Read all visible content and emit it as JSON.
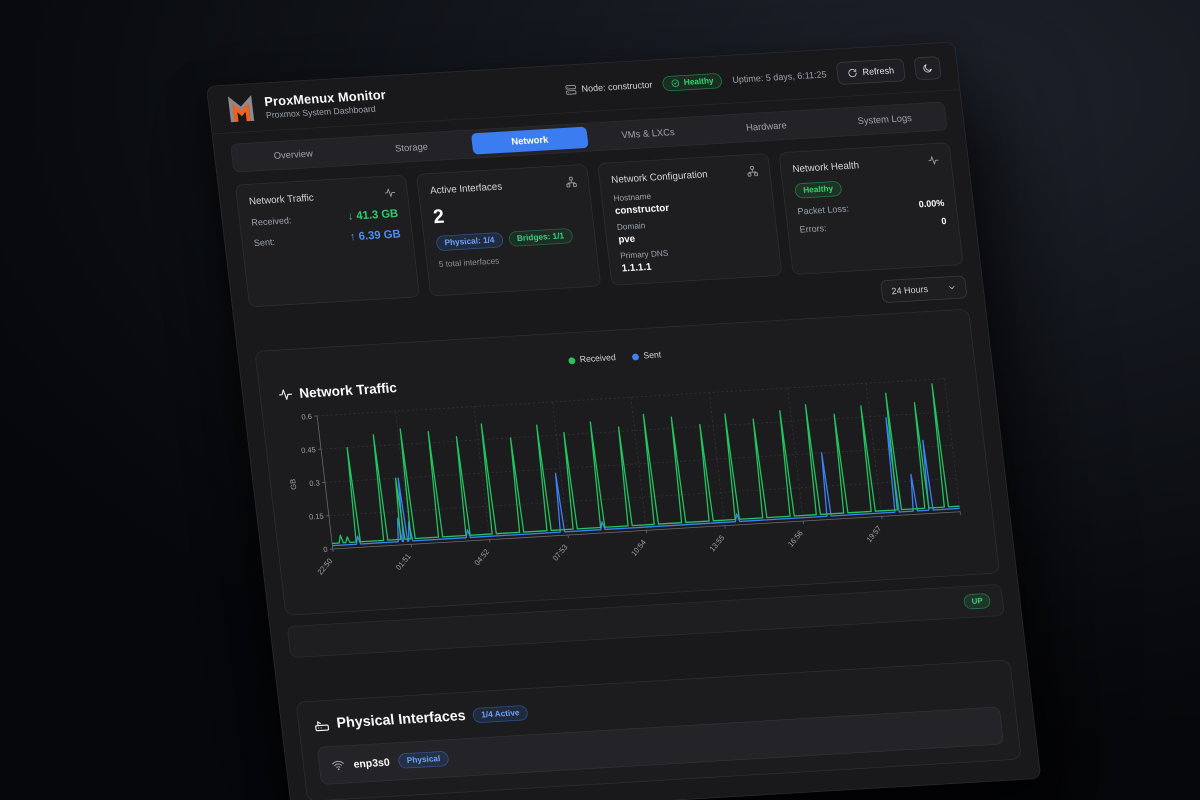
{
  "header": {
    "title": "ProxMenux Monitor",
    "subtitle": "Proxmox System Dashboard",
    "node_label": "Node: constructor",
    "health_badge": "Healthy",
    "uptime": "Uptime: 5 days, 6:11:25",
    "refresh_label": "Refresh"
  },
  "tabs": [
    {
      "label": "Overview",
      "active": false
    },
    {
      "label": "Storage",
      "active": false
    },
    {
      "label": "Network",
      "active": true
    },
    {
      "label": "VMs & LXCs",
      "active": false
    },
    {
      "label": "Hardware",
      "active": false
    },
    {
      "label": "System Logs",
      "active": false
    }
  ],
  "cards": {
    "traffic": {
      "title": "Network Traffic",
      "received_label": "Received:",
      "received_arrow": "↓",
      "received_value": "41.3 GB",
      "sent_label": "Sent:",
      "sent_arrow": "↑",
      "sent_value": "6.39 GB"
    },
    "interfaces": {
      "title": "Active Interfaces",
      "count": "2",
      "physical_badge": "Physical: 1/4",
      "bridges_badge": "Bridges: 1/1",
      "total": "5 total interfaces"
    },
    "config": {
      "title": "Network Configuration",
      "hostname_label": "Hostname",
      "hostname": "constructor",
      "domain_label": "Domain",
      "domain": "pve",
      "dns_label": "Primary DNS",
      "dns": "1.1.1.1"
    },
    "health": {
      "title": "Network Health",
      "status_badge": "Healthy",
      "packet_loss_label": "Packet Loss:",
      "packet_loss": "0.00%",
      "errors_label": "Errors:",
      "errors": "0"
    }
  },
  "range_select": {
    "value": "24 Hours"
  },
  "chart_data": {
    "type": "line",
    "title": "Network Traffic",
    "ylabel": "GB",
    "ylim": [
      0,
      0.6
    ],
    "yticks": [
      0,
      0.15,
      0.3,
      0.45,
      0.6
    ],
    "x_span_hours": 24,
    "x_ticks": [
      {
        "h": 0,
        "label": "22:50"
      },
      {
        "h": 3,
        "label": "01:51"
      },
      {
        "h": 6,
        "label": "04:52"
      },
      {
        "h": 9,
        "label": "07:53"
      },
      {
        "h": 12,
        "label": "10:54"
      },
      {
        "h": 15,
        "label": "13:55"
      },
      {
        "h": 18,
        "label": "16:56"
      },
      {
        "h": 21,
        "label": "19:57"
      },
      {
        "h": 24,
        "label": ""
      }
    ],
    "legend_position": "top-center",
    "grid": true,
    "series": [
      {
        "name": "Received",
        "color": "#22c55e",
        "baseline_gb": 0.025,
        "spikes_hour_gb": [
          [
            0.35,
            0.06
          ],
          [
            0.6,
            0.05
          ],
          [
            1.0,
            0.45
          ],
          [
            2.05,
            0.5
          ],
          [
            2.7,
            0.3
          ],
          [
            3.1,
            0.52
          ],
          [
            4.15,
            0.5
          ],
          [
            5.2,
            0.47
          ],
          [
            6.2,
            0.52
          ],
          [
            7.25,
            0.45
          ],
          [
            8.3,
            0.5
          ],
          [
            9.3,
            0.46
          ],
          [
            10.35,
            0.5
          ],
          [
            11.4,
            0.47
          ],
          [
            12.4,
            0.52
          ],
          [
            13.45,
            0.5
          ],
          [
            14.5,
            0.46
          ],
          [
            15.5,
            0.5
          ],
          [
            16.55,
            0.47
          ],
          [
            17.6,
            0.5
          ],
          [
            18.6,
            0.52
          ],
          [
            19.65,
            0.47
          ],
          [
            20.7,
            0.5
          ],
          [
            21.7,
            0.55
          ],
          [
            22.75,
            0.5
          ],
          [
            23.5,
            0.58
          ]
        ]
      },
      {
        "name": "Sent",
        "color": "#3b82f6",
        "baseline_gb": 0.015,
        "spikes_hour_gb": [
          [
            1.0,
            0.05
          ],
          [
            2.6,
            0.12
          ],
          [
            2.8,
            0.3
          ],
          [
            3.0,
            0.1
          ],
          [
            5.2,
            0.05
          ],
          [
            8.8,
            0.28
          ],
          [
            10.35,
            0.05
          ],
          [
            15.5,
            0.05
          ],
          [
            19.0,
            0.3
          ],
          [
            21.6,
            0.44
          ],
          [
            22.3,
            0.18
          ],
          [
            22.9,
            0.33
          ]
        ]
      }
    ]
  },
  "status_row": {
    "up_badge": "UP"
  },
  "physical": {
    "title": "Physical Interfaces",
    "active_badge": "1/4 Active",
    "rows": [
      {
        "name": "enp3s0",
        "type_badge": "Physical",
        "status": ""
      }
    ]
  },
  "colors": {
    "accent_blue": "#3b7df0",
    "green": "#22c55e",
    "blue": "#3b82f6",
    "logo_orange": "#f2611c"
  }
}
